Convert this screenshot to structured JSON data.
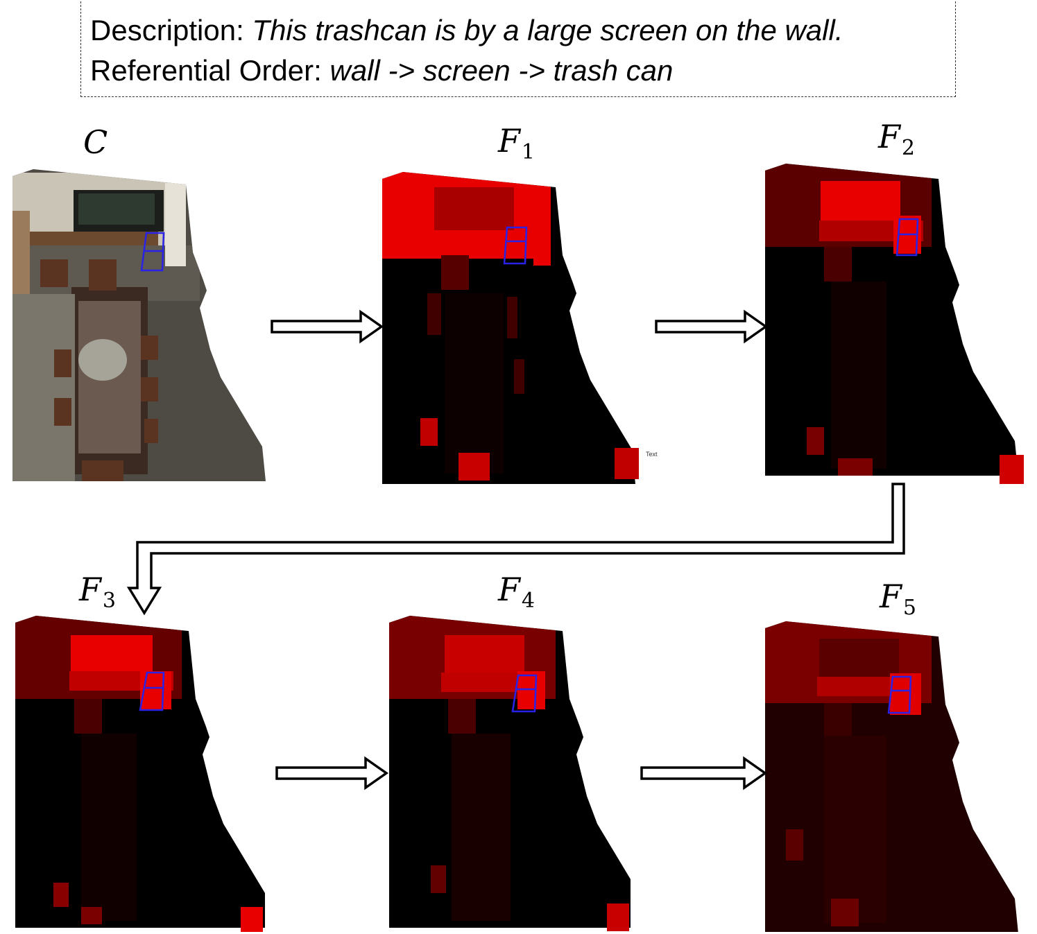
{
  "description": {
    "prefix": "Description: ",
    "text": "This trashcan is by a large screen on the wall."
  },
  "referential_order": {
    "prefix": "Referential Order: ",
    "text": "wall -> screen -> trash can"
  },
  "panels": {
    "c": {
      "var": "C",
      "sub": ""
    },
    "f1": {
      "var": "F",
      "sub": "1"
    },
    "f2": {
      "var": "F",
      "sub": "2"
    },
    "f3": {
      "var": "F",
      "sub": "3"
    },
    "f4": {
      "var": "F",
      "sub": "4"
    },
    "f5": {
      "var": "F",
      "sub": "5"
    }
  },
  "stray_text": "Text",
  "colors": {
    "highlight_box": "#2a22e6",
    "bright_red": "#e80000",
    "mid_red": "#a80000",
    "dark_red": "#5a0000",
    "near_black": "#140000"
  }
}
